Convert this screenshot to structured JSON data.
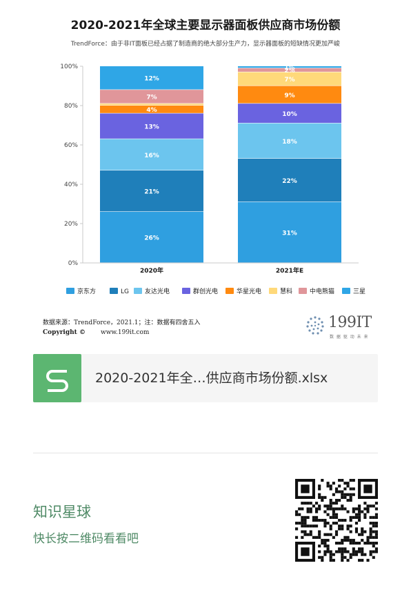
{
  "title": "2020-2021年全球主要显示器面板供应商市场份额",
  "subtitle": "TrendForce：由于非IT面板已经占据了制造商的绝大部分生产力，显示器面板的短缺情况更加严峻",
  "source_line": "数据来源：TrendForce，2021.1；注：数据有四舍五入",
  "copyright_label": "Copyright ©",
  "copyright_site": "www.199it.com",
  "logo": {
    "text": "199IT",
    "tagline": "数 据 驱 动 未 来"
  },
  "attachment": {
    "icon": "spreadsheet-s-icon",
    "file_name": "2020-2021年全…供应商市场份额.xlsx"
  },
  "promo": {
    "title": "知识星球",
    "subtitle": "快长按二维码看看吧",
    "qr_icon": "qr-code-icon"
  },
  "chart_data": {
    "type": "bar",
    "stacked": true,
    "categories": [
      "2020年",
      "2021年E"
    ],
    "ylim": [
      0,
      100
    ],
    "yticks": [
      "0%",
      "20%",
      "40%",
      "60%",
      "80%",
      "100%"
    ],
    "legend_position": "bottom",
    "series": [
      {
        "name": "京东方",
        "color": "#2f9fe0",
        "values": [
          26,
          31
        ],
        "labels": [
          "26%",
          "31%"
        ]
      },
      {
        "name": "LG",
        "color": "#1f7fba",
        "values": [
          21,
          22
        ],
        "labels": [
          "21%",
          "22%"
        ]
      },
      {
        "name": "友达光电",
        "color": "#6cc5ee",
        "values": [
          16,
          18
        ],
        "labels": [
          "16%",
          "18%"
        ]
      },
      {
        "name": "群创光电",
        "color": "#6a63e0",
        "values": [
          13,
          10
        ],
        "labels": [
          "13%",
          "10%"
        ]
      },
      {
        "name": "华星光电",
        "color": "#ff8a10",
        "values": [
          4,
          9
        ],
        "labels": [
          "4%",
          "9%"
        ]
      },
      {
        "name": "慧科",
        "color": "#ffd97a",
        "values": [
          1,
          7
        ],
        "labels": [
          "",
          "7%"
        ]
      },
      {
        "name": "中电熊猫",
        "color": "#e0969a",
        "values": [
          7,
          2
        ],
        "labels": [
          "7%",
          "2%"
        ]
      },
      {
        "name": "三星",
        "color": "#2fa6e6",
        "values": [
          12,
          1
        ],
        "labels": [
          "12%",
          "1%"
        ]
      }
    ]
  }
}
